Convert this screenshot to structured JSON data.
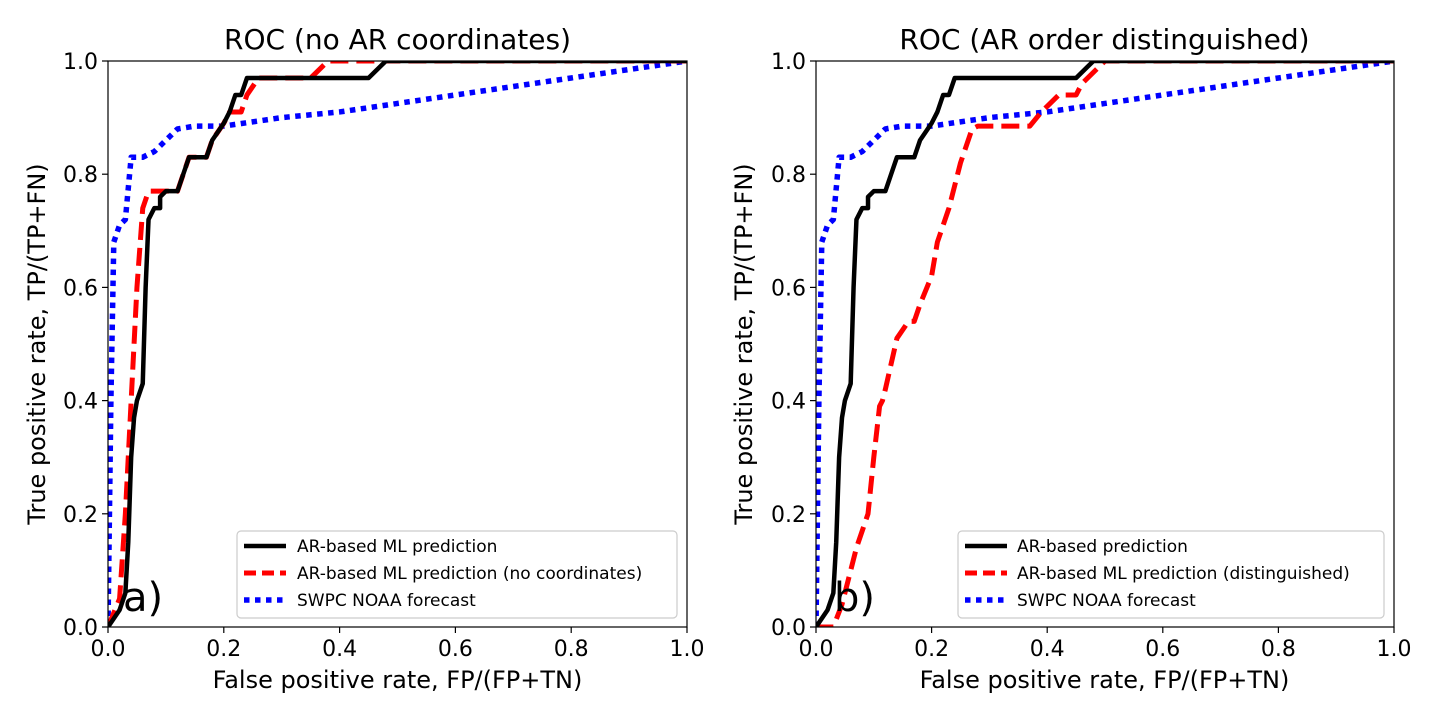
{
  "chart_data": [
    {
      "type": "line",
      "panel_label": "a)",
      "title": "ROC (no AR coordinates)",
      "xlabel": "False positive rate, FP/(FP+TN)",
      "ylabel": "True positive rate, TP/(TP+FN)",
      "xlim": [
        0.0,
        1.0
      ],
      "ylim": [
        0.0,
        1.0
      ],
      "xticks": [
        "0.0",
        "0.2",
        "0.4",
        "0.6",
        "0.8",
        "1.0"
      ],
      "yticks": [
        "0.0",
        "0.2",
        "0.4",
        "0.6",
        "0.8",
        "1.0"
      ],
      "grid": false,
      "legend_position": "lower-right",
      "series": [
        {
          "name": "AR-based ML prediction",
          "style": "solid",
          "color": "#000000",
          "x": [
            0.0,
            0.02,
            0.03,
            0.035,
            0.04,
            0.045,
            0.05,
            0.06,
            0.065,
            0.07,
            0.08,
            0.09,
            0.09,
            0.1,
            0.12,
            0.13,
            0.14,
            0.17,
            0.18,
            0.2,
            0.21,
            0.22,
            0.23,
            0.24,
            0.45,
            0.47,
            0.48,
            1.0
          ],
          "y": [
            0.0,
            0.03,
            0.06,
            0.15,
            0.3,
            0.37,
            0.4,
            0.43,
            0.6,
            0.72,
            0.74,
            0.74,
            0.76,
            0.77,
            0.77,
            0.8,
            0.83,
            0.83,
            0.86,
            0.89,
            0.91,
            0.94,
            0.94,
            0.97,
            0.97,
            0.99,
            1.0,
            1.0
          ]
        },
        {
          "name": "AR-based ML prediction (no coordinates)",
          "style": "dashed",
          "color": "#ff0000",
          "x": [
            0.0,
            0.02,
            0.03,
            0.04,
            0.05,
            0.06,
            0.07,
            0.08,
            0.12,
            0.13,
            0.14,
            0.17,
            0.18,
            0.2,
            0.21,
            0.23,
            0.24,
            0.26,
            0.35,
            0.37,
            0.38,
            1.0
          ],
          "y": [
            0.0,
            0.05,
            0.2,
            0.4,
            0.6,
            0.74,
            0.77,
            0.77,
            0.77,
            0.8,
            0.83,
            0.83,
            0.86,
            0.89,
            0.91,
            0.91,
            0.94,
            0.97,
            0.97,
            0.99,
            1.0,
            1.0
          ]
        },
        {
          "name": "SWPC NOAA forecast",
          "style": "dotted",
          "color": "#0000ff",
          "x": [
            0.0,
            0.005,
            0.01,
            0.02,
            0.03,
            0.04,
            0.06,
            0.08,
            0.1,
            0.12,
            0.15,
            0.18,
            0.2,
            0.3,
            0.4,
            0.5,
            0.6,
            0.7,
            0.8,
            0.9,
            1.0
          ],
          "y": [
            0.0,
            0.4,
            0.68,
            0.71,
            0.72,
            0.83,
            0.83,
            0.84,
            0.86,
            0.88,
            0.885,
            0.885,
            0.885,
            0.9,
            0.91,
            0.925,
            0.94,
            0.955,
            0.97,
            0.985,
            1.0
          ]
        }
      ]
    },
    {
      "type": "line",
      "panel_label": "b)",
      "title": "ROC (AR order distinguished)",
      "xlabel": "False positive rate, FP/(FP+TN)",
      "ylabel": "True positive rate, TP/(TP+FN)",
      "xlim": [
        0.0,
        1.0
      ],
      "ylim": [
        0.0,
        1.0
      ],
      "xticks": [
        "0.0",
        "0.2",
        "0.4",
        "0.6",
        "0.8",
        "1.0"
      ],
      "yticks": [
        "0.0",
        "0.2",
        "0.4",
        "0.6",
        "0.8",
        "1.0"
      ],
      "grid": false,
      "legend_position": "lower-right",
      "series": [
        {
          "name": "AR-based prediction",
          "style": "solid",
          "color": "#000000",
          "x": [
            0.0,
            0.02,
            0.03,
            0.035,
            0.04,
            0.045,
            0.05,
            0.06,
            0.065,
            0.07,
            0.08,
            0.09,
            0.09,
            0.1,
            0.12,
            0.13,
            0.14,
            0.17,
            0.18,
            0.2,
            0.21,
            0.22,
            0.23,
            0.24,
            0.45,
            0.47,
            0.48,
            1.0
          ],
          "y": [
            0.0,
            0.03,
            0.06,
            0.15,
            0.3,
            0.37,
            0.4,
            0.43,
            0.6,
            0.72,
            0.74,
            0.74,
            0.76,
            0.77,
            0.77,
            0.8,
            0.83,
            0.83,
            0.86,
            0.89,
            0.91,
            0.94,
            0.94,
            0.97,
            0.97,
            0.99,
            1.0,
            1.0
          ]
        },
        {
          "name": "AR-based ML prediction (distinguished)",
          "style": "dashed",
          "color": "#ff0000",
          "x": [
            0.0,
            0.03,
            0.045,
            0.06,
            0.07,
            0.08,
            0.09,
            0.1,
            0.11,
            0.115,
            0.12,
            0.14,
            0.16,
            0.17,
            0.18,
            0.2,
            0.21,
            0.22,
            0.23,
            0.25,
            0.27,
            0.28,
            0.3,
            0.37,
            0.39,
            0.4,
            0.42,
            0.45,
            0.46,
            0.5,
            1.0
          ],
          "y": [
            0.0,
            0.0,
            0.04,
            0.1,
            0.14,
            0.17,
            0.2,
            0.3,
            0.39,
            0.4,
            0.42,
            0.51,
            0.54,
            0.54,
            0.57,
            0.62,
            0.68,
            0.71,
            0.74,
            0.82,
            0.88,
            0.885,
            0.885,
            0.885,
            0.91,
            0.92,
            0.94,
            0.94,
            0.96,
            1.0,
            1.0
          ]
        },
        {
          "name": "SWPC NOAA forecast",
          "style": "dotted",
          "color": "#0000ff",
          "x": [
            0.0,
            0.005,
            0.01,
            0.02,
            0.03,
            0.04,
            0.06,
            0.08,
            0.1,
            0.12,
            0.15,
            0.18,
            0.2,
            0.3,
            0.4,
            0.5,
            0.6,
            0.7,
            0.8,
            0.9,
            1.0
          ],
          "y": [
            0.0,
            0.4,
            0.68,
            0.71,
            0.72,
            0.83,
            0.83,
            0.84,
            0.86,
            0.88,
            0.885,
            0.885,
            0.885,
            0.9,
            0.91,
            0.925,
            0.94,
            0.955,
            0.97,
            0.985,
            1.0
          ]
        }
      ]
    }
  ]
}
